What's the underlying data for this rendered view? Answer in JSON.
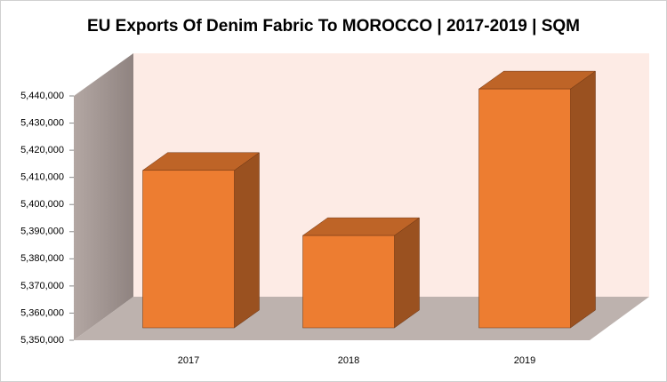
{
  "chart_data": {
    "type": "bar3d",
    "title": "EU Exports Of Denim Fabric To MOROCCO | 2017-2019 | SQM",
    "categories": [
      "2017",
      "2018",
      "2019"
    ],
    "values": [
      5408000,
      5384000,
      5438000
    ],
    "color": "#ed7d31",
    "ylim": [
      5350000,
      5440000
    ],
    "yticks": [
      {
        "value": 5350000,
        "label": "5,350,000"
      },
      {
        "value": 5360000,
        "label": "5,360,000"
      },
      {
        "value": 5370000,
        "label": "5,370,000"
      },
      {
        "value": 5380000,
        "label": "5,380,000"
      },
      {
        "value": 5390000,
        "label": "5,390,000"
      },
      {
        "value": 5400000,
        "label": "5,400,000"
      },
      {
        "value": 5410000,
        "label": "5,410,000"
      },
      {
        "value": 5420000,
        "label": "5,420,000"
      },
      {
        "value": 5430000,
        "label": "5,430,000"
      },
      {
        "value": 5440000,
        "label": "5,440,000"
      }
    ]
  }
}
